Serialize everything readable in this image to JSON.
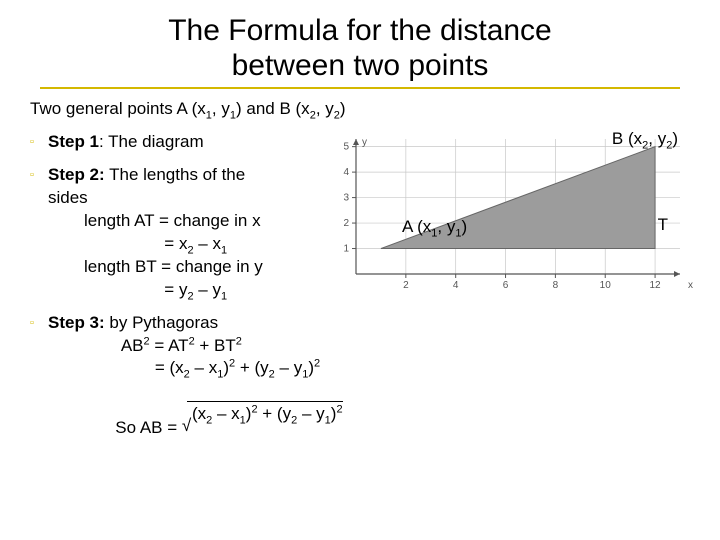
{
  "title_line1": "The Formula for the distance",
  "title_line2": "between two points",
  "intro_pre": "Two general points A (x",
  "intro_mid": ", y",
  "intro_mid2": ") and B (x",
  "intro_mid3": ", y",
  "intro_end": ")",
  "step1_label": "Step 1",
  "step1_text": ": The diagram",
  "step2_label": "Step 2:",
  "step2_text": " The lengths of the",
  "step2_text2": "sides",
  "step2_l1a": "length AT = change in x",
  "step2_l1b": "                 = x",
  "step2_l1b_mid": " – x",
  "step2_l2a": "length BT = change in y",
  "step2_l2b": "                 = y",
  "step2_l2b_mid": " – y",
  "step3_label": "Step 3:",
  "step3_text": " by Pythagoras",
  "step3_l1": "        AB",
  "step3_l1_eq": " = AT",
  "step3_l1_plus": " + BT",
  "step3_l2_pre": "               = (x",
  "step3_l2_mid1": " – x",
  "step3_l2_mid2": " + (y",
  "step3_l2_mid3": " – y",
  "step3_so": "So AB = ",
  "step3_sq_pre": " (x",
  "step3_sq_mid1": " – x",
  "step3_sq_mid2": " + (y",
  "step3_sq_mid3": " – y",
  "annot_B_pre": "B (x",
  "annot_B_mid": ", y",
  "annot_B_end": ")",
  "annot_A_pre": "A (x",
  "annot_A_mid": ", y",
  "annot_A_end": ")",
  "annot_T": "T",
  "chart": {
    "type": "line-triangle",
    "x_ticks": [
      2,
      4,
      6,
      8,
      10,
      12
    ],
    "y_ticks": [
      1,
      2,
      3,
      4,
      5
    ],
    "x_range": [
      0,
      13
    ],
    "y_range": [
      0,
      5.3
    ],
    "axis_color": "#555555",
    "grid_color": "#c8c8c8",
    "tick_color": "#555555",
    "tick_font_size": 10,
    "bg": "#ffffff",
    "triangle": {
      "A": [
        1,
        1
      ],
      "T": [
        12,
        1
      ],
      "B": [
        12,
        5
      ],
      "fill": "#9c9c9c"
    },
    "labels": {
      "x": "x",
      "y": "y"
    }
  },
  "colors": {
    "accent": "#d4b800",
    "text": "#000000",
    "bg": "#ffffff"
  }
}
